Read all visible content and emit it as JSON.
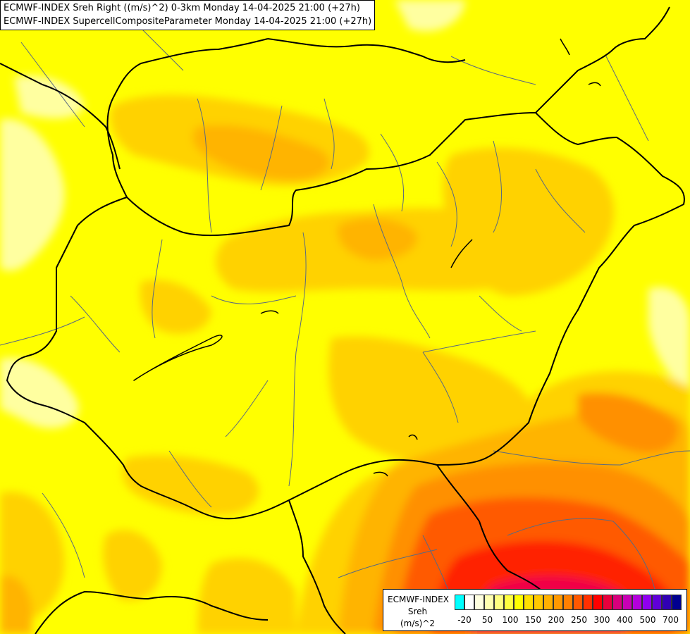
{
  "title": {
    "line1": "ECMWF-INDEX Sreh Right ((m/s)^2) 0-3km Monday 14-04-2025 21:00 (+27h)",
    "line2": "ECMWF-INDEX SupercellCompositeParameter Monday 14-04-2025 21:00 (+27h)"
  },
  "legend": {
    "title": "ECMWF-INDEX",
    "parameter": "Sreh",
    "units": "(m/s)^2",
    "colors": [
      "#00ffff",
      "#ffffff",
      "#ffffe0",
      "#ffffb0",
      "#ffff80",
      "#ffff40",
      "#ffff00",
      "#ffe000",
      "#ffc800",
      "#ffb000",
      "#ff9800",
      "#ff8000",
      "#ff5800",
      "#ff3000",
      "#ff0000",
      "#e8003c",
      "#d8007c",
      "#c800b4",
      "#b400dc",
      "#9000f0",
      "#6000d8",
      "#3000b4",
      "#000090"
    ],
    "ticks": [
      "-20",
      "50",
      "100",
      "150",
      "200",
      "250",
      "300",
      "400",
      "500",
      "700"
    ]
  },
  "colors": {
    "level_low": "#ffffa0",
    "level_base": "#ffff00",
    "level_mid": "#ffd200",
    "level_high": "#ffb400",
    "level_higher": "#ff9000",
    "level_strong": "#ff5a00",
    "level_very_strong": "#ff2000",
    "level_extreme": "#f00046",
    "border_country": "#000000",
    "border_region": "#5a6a80"
  }
}
